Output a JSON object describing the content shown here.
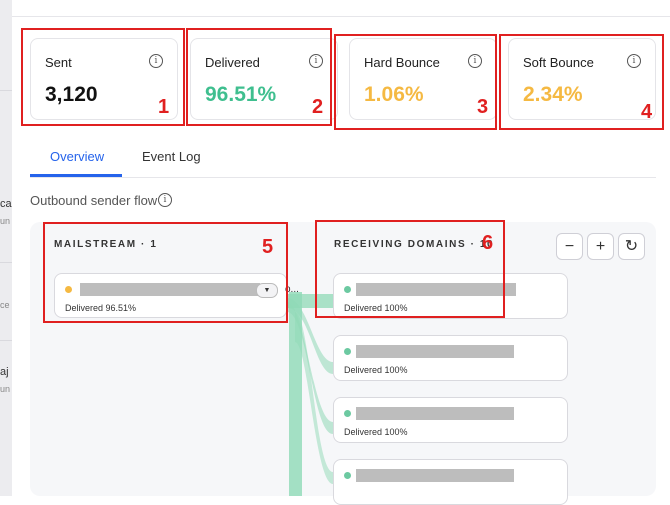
{
  "left_fragments": [
    "ca",
    "un",
    "ce",
    "aj",
    "un"
  ],
  "metrics": [
    {
      "label": "Sent",
      "value": "3,120",
      "color": "#111111",
      "annotation": "1"
    },
    {
      "label": "Delivered",
      "value": "96.51%",
      "color": "#3fbf8f",
      "annotation": "2"
    },
    {
      "label": "Hard Bounce",
      "value": "1.06%",
      "color": "#f5b942",
      "annotation": "3"
    },
    {
      "label": "Soft Bounce",
      "value": "2.34%",
      "color": "#f5b942",
      "annotation": "4"
    }
  ],
  "info_glyph": "i",
  "tabs": [
    {
      "label": "Overview",
      "active": true
    },
    {
      "label": "Event Log",
      "active": false
    }
  ],
  "flow": {
    "title": "Outbound sender flow",
    "mailstream": {
      "heading": "MAILSTREAM · 1",
      "annotation": "5",
      "ellipsis": "o...",
      "item": {
        "status": "Delivered 96.51%",
        "dot_color": "#f5b942"
      }
    },
    "domains": {
      "heading": "RECEIVING DOMAINS · 10",
      "annotation": "6",
      "items": [
        {
          "status": "Delivered 100%",
          "dot_color": "#6cc9a1"
        },
        {
          "status": "Delivered 100%",
          "dot_color": "#6cc9a1"
        },
        {
          "status": "Delivered 100%",
          "dot_color": "#6cc9a1"
        },
        {
          "status": "",
          "dot_color": "#6cc9a1"
        }
      ]
    },
    "controls": {
      "zoom_out": "−",
      "zoom_in": "+",
      "reset": "↻"
    },
    "link_color": "#8fd9b6"
  }
}
